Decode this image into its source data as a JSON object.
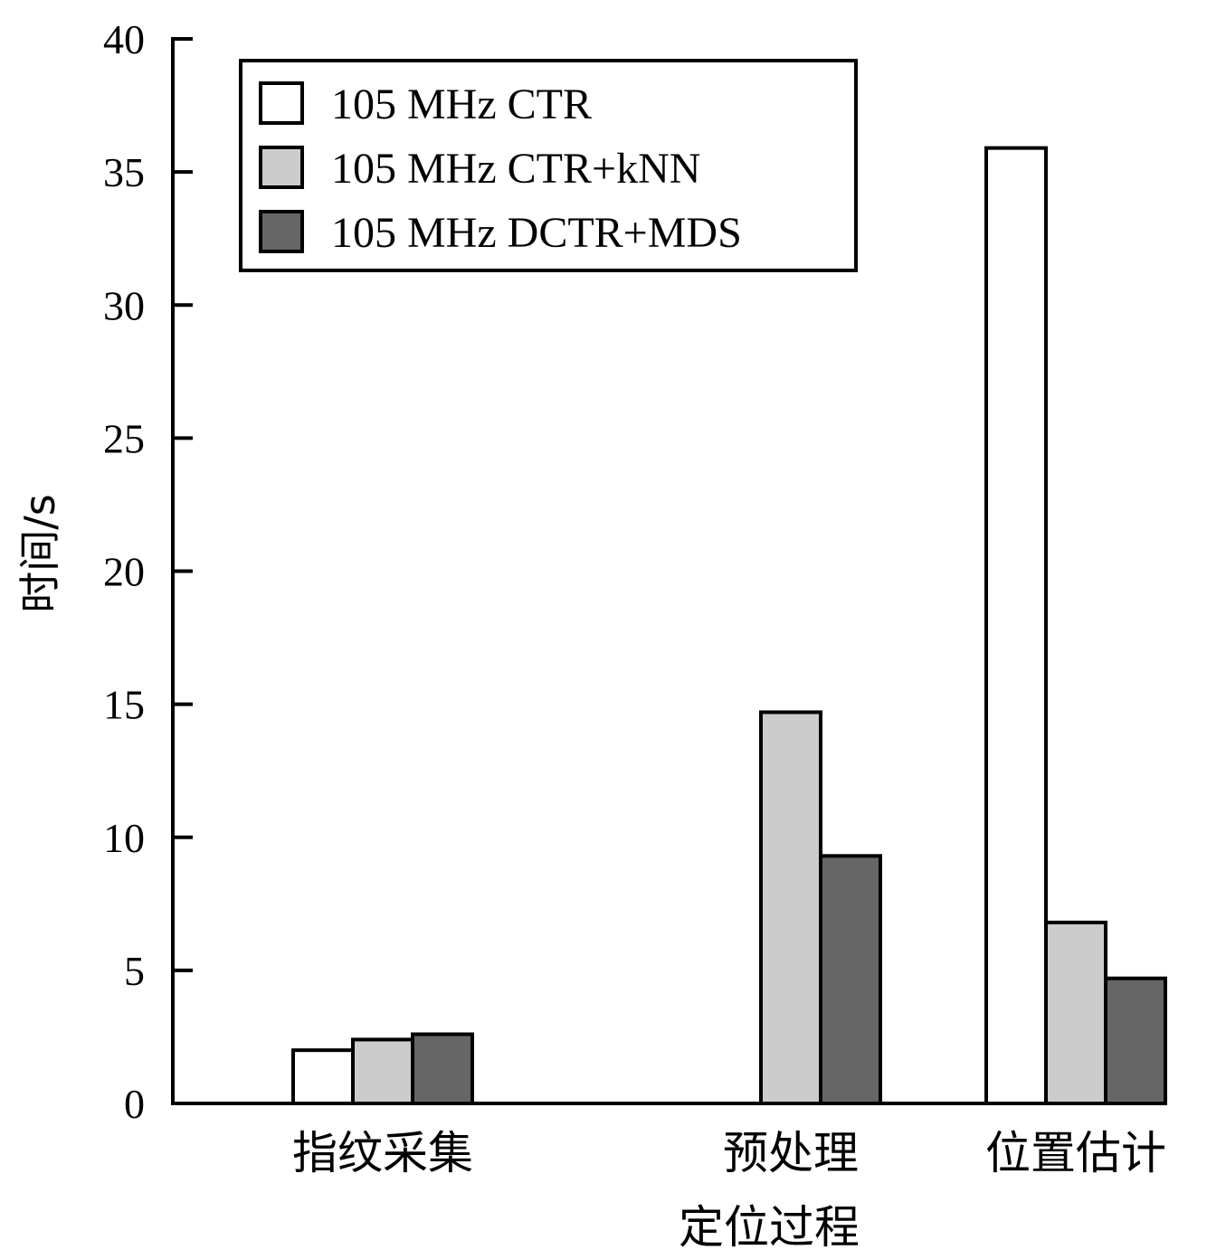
{
  "chart_data": {
    "type": "bar",
    "categories": [
      "指纹采集",
      "预处理",
      "位置估计"
    ],
    "series": [
      {
        "name": "105 MHz CTR",
        "color": "#ffffff",
        "values": [
          2.0,
          null,
          35.9
        ]
      },
      {
        "name": "105 MHz CTR+kNN",
        "color": "#cccccc",
        "values": [
          2.4,
          14.7,
          6.8
        ]
      },
      {
        "name": "105 MHz DCTR+MDS",
        "color": "#666666",
        "values": [
          2.6,
          9.3,
          4.7
        ]
      }
    ],
    "xlabel": "定位过程",
    "ylabel": "时间/s",
    "ylim": [
      0,
      40
    ],
    "yticks": [
      0,
      5,
      10,
      15,
      20,
      25,
      30,
      35,
      40
    ],
    "grid": false,
    "legend_position": "top-left"
  }
}
